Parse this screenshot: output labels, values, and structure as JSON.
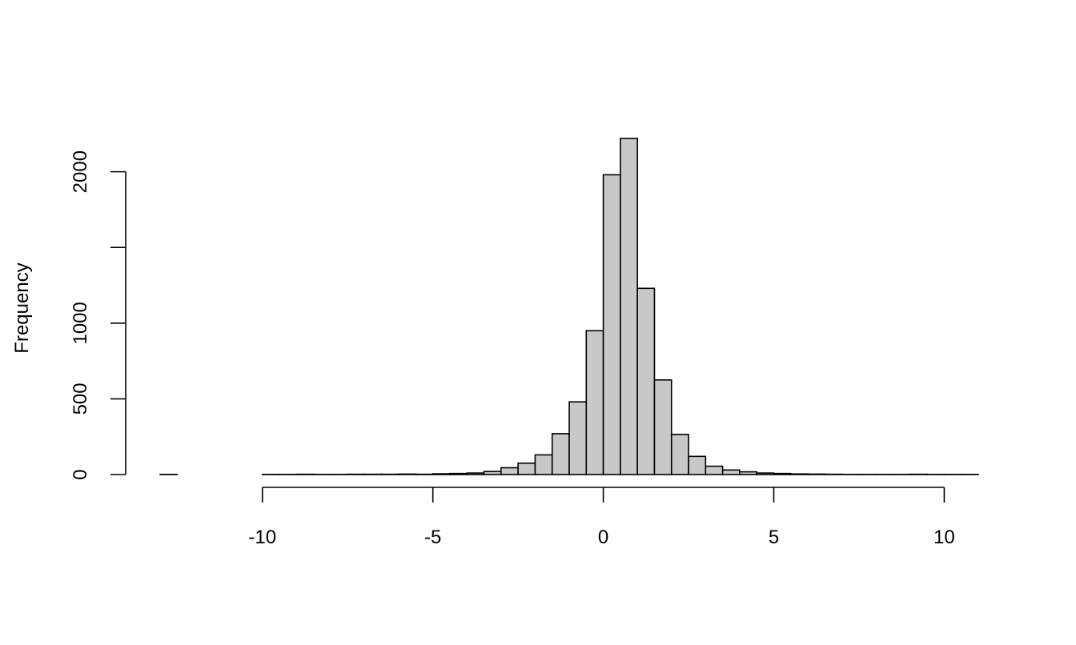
{
  "chart_data": {
    "type": "bar",
    "title": "",
    "xlabel": "",
    "ylabel": "Frequency",
    "bar_color": "#c8c8c8",
    "edge_color": "#000000",
    "grid": false,
    "legend": "none",
    "bin_width": 0.5,
    "bins_start": [
      -13,
      -12.5,
      -12,
      -11.5,
      -11,
      -10.5,
      -10,
      -9.5,
      -9,
      -8.5,
      -8,
      -7.5,
      -7,
      -6.5,
      -6,
      -5.5,
      -5,
      -4.5,
      -4,
      -3.5,
      -3,
      -2.5,
      -2,
      -1.5,
      -1,
      -0.5,
      0,
      0.5,
      1,
      1.5,
      2,
      2.5,
      3,
      3.5,
      4,
      4.5,
      5,
      5.5,
      6,
      6.5,
      7,
      7.5,
      8,
      8.5,
      9,
      9.5,
      10,
      10.5
    ],
    "values": [
      1,
      0,
      0,
      0,
      0,
      0,
      1,
      1,
      2,
      1,
      1,
      2,
      2,
      2,
      3,
      2,
      5,
      7,
      10,
      20,
      45,
      75,
      130,
      270,
      480,
      950,
      1980,
      2220,
      1230,
      625,
      265,
      120,
      55,
      30,
      18,
      10,
      7,
      4,
      3,
      2,
      1,
      1,
      1,
      1,
      2,
      1,
      1,
      1
    ],
    "xlim": [
      -13,
      11
    ],
    "ylim": [
      0,
      2220
    ],
    "x_ticks": [
      -10,
      -5,
      0,
      5,
      10
    ],
    "x_tick_labels": [
      "-10",
      "-5",
      "0",
      "5",
      "10"
    ],
    "y_ticks": [
      0,
      500,
      1000,
      1500,
      2000
    ],
    "y_tick_labels": [
      "0",
      "500",
      "1000",
      "",
      "2000"
    ]
  }
}
